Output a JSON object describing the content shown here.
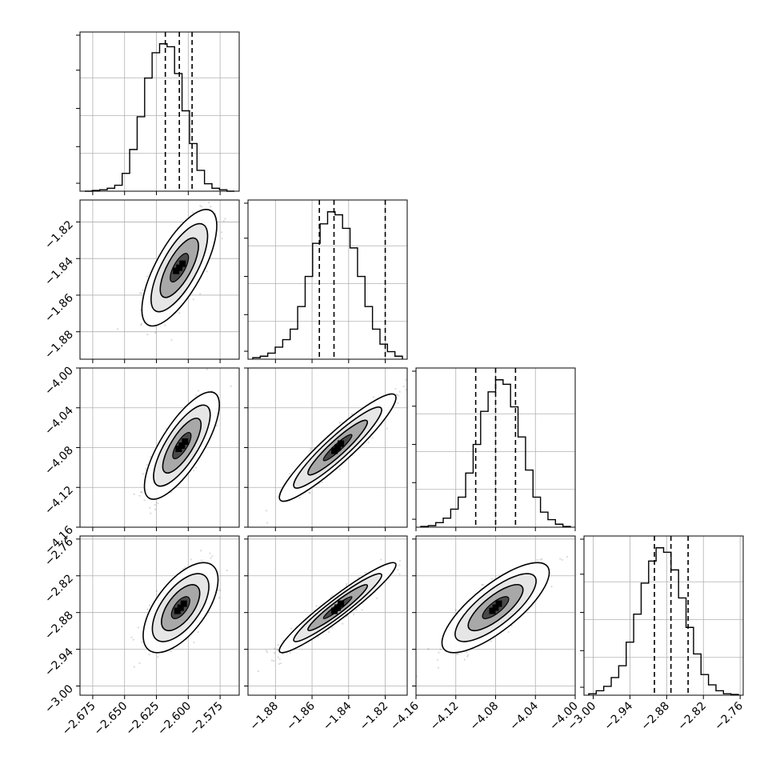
{
  "chart_data": {
    "type": "corner",
    "figure_size_px": [
      970,
      970
    ],
    "parameters": 4,
    "grid": true,
    "axes": [
      {
        "range": [
          -2.685,
          -2.56
        ],
        "ticks": [
          -2.675,
          -2.65,
          -2.625,
          -2.6,
          -2.575
        ],
        "tick_labels": [
          "−2.675",
          "−2.650",
          "−2.625",
          "−2.600",
          "−2.575"
        ]
      },
      {
        "range": [
          -1.895,
          -1.808
        ],
        "ticks": [
          -1.88,
          -1.86,
          -1.84,
          -1.82
        ],
        "tick_labels": [
          "−1.88",
          "−1.86",
          "−1.84",
          "−1.82"
        ]
      },
      {
        "range": [
          -4.16,
          -4.0
        ],
        "ticks": [
          -4.16,
          -4.12,
          -4.08,
          -4.04,
          -4.0
        ],
        "tick_labels": [
          "−4.16",
          "−4.12",
          "−4.08",
          "−4.04",
          "−4.00"
        ]
      },
      {
        "range": [
          -3.015,
          -2.755
        ],
        "ticks": [
          -3.0,
          -2.94,
          -2.88,
          -2.82,
          -2.76
        ],
        "tick_labels": [
          "−3.00",
          "−2.94",
          "−2.88",
          "−2.82",
          "−2.76"
        ]
      }
    ],
    "quantiles": [
      [
        -2.618,
        -2.607,
        -2.597
      ],
      [
        -1.856,
        -1.848,
        -1.82
      ],
      [
        -4.1,
        -4.08,
        -4.06
      ],
      [
        -2.9,
        -2.873,
        -2.845
      ]
    ],
    "histograms": [
      {
        "values": [
          0,
          0.005,
          0.01,
          0.02,
          0.04,
          0.12,
          0.28,
          0.5,
          0.76,
          0.93,
          0.99,
          0.97,
          0.79,
          0.54,
          0.32,
          0.14,
          0.05,
          0.02,
          0.01,
          0
        ]
      },
      {
        "values": [
          0.01,
          0.02,
          0.04,
          0.08,
          0.13,
          0.2,
          0.35,
          0.55,
          0.77,
          0.9,
          0.98,
          0.96,
          0.87,
          0.74,
          0.55,
          0.35,
          0.2,
          0.1,
          0.05,
          0.02
        ]
      },
      {
        "values": [
          0.005,
          0.01,
          0.03,
          0.06,
          0.12,
          0.2,
          0.36,
          0.55,
          0.77,
          0.9,
          0.98,
          0.95,
          0.8,
          0.6,
          0.38,
          0.2,
          0.1,
          0.05,
          0.02,
          0.005
        ]
      },
      {
        "values": [
          0.01,
          0.03,
          0.06,
          0.12,
          0.2,
          0.36,
          0.55,
          0.76,
          0.91,
          1.0,
          0.97,
          0.85,
          0.66,
          0.46,
          0.28,
          0.14,
          0.07,
          0.03,
          0.01,
          0.005
        ]
      }
    ],
    "pairs": [
      {
        "row": 1,
        "col": 0,
        "center": [
          -2.607,
          -1.845
        ],
        "sd": [
          0.012,
          0.013
        ],
        "rho": 0.72
      },
      {
        "row": 2,
        "col": 0,
        "center": [
          -2.605,
          -4.078
        ],
        "sd": [
          0.012,
          0.022
        ],
        "rho": 0.76
      },
      {
        "row": 2,
        "col": 1,
        "center": [
          -1.846,
          -4.08
        ],
        "sd": [
          0.013,
          0.022
        ],
        "rho": 0.93
      },
      {
        "row": 3,
        "col": 0,
        "center": [
          -2.606,
          -2.872
        ],
        "sd": [
          0.012,
          0.03
        ],
        "rho": 0.62
      },
      {
        "row": 3,
        "col": 1,
        "center": [
          -1.846,
          -2.872
        ],
        "sd": [
          0.013,
          0.03
        ],
        "rho": 0.95
      },
      {
        "row": 3,
        "col": 2,
        "center": [
          -4.08,
          -2.872
        ],
        "sd": [
          0.022,
          0.03
        ],
        "rho": 0.78
      }
    ]
  }
}
